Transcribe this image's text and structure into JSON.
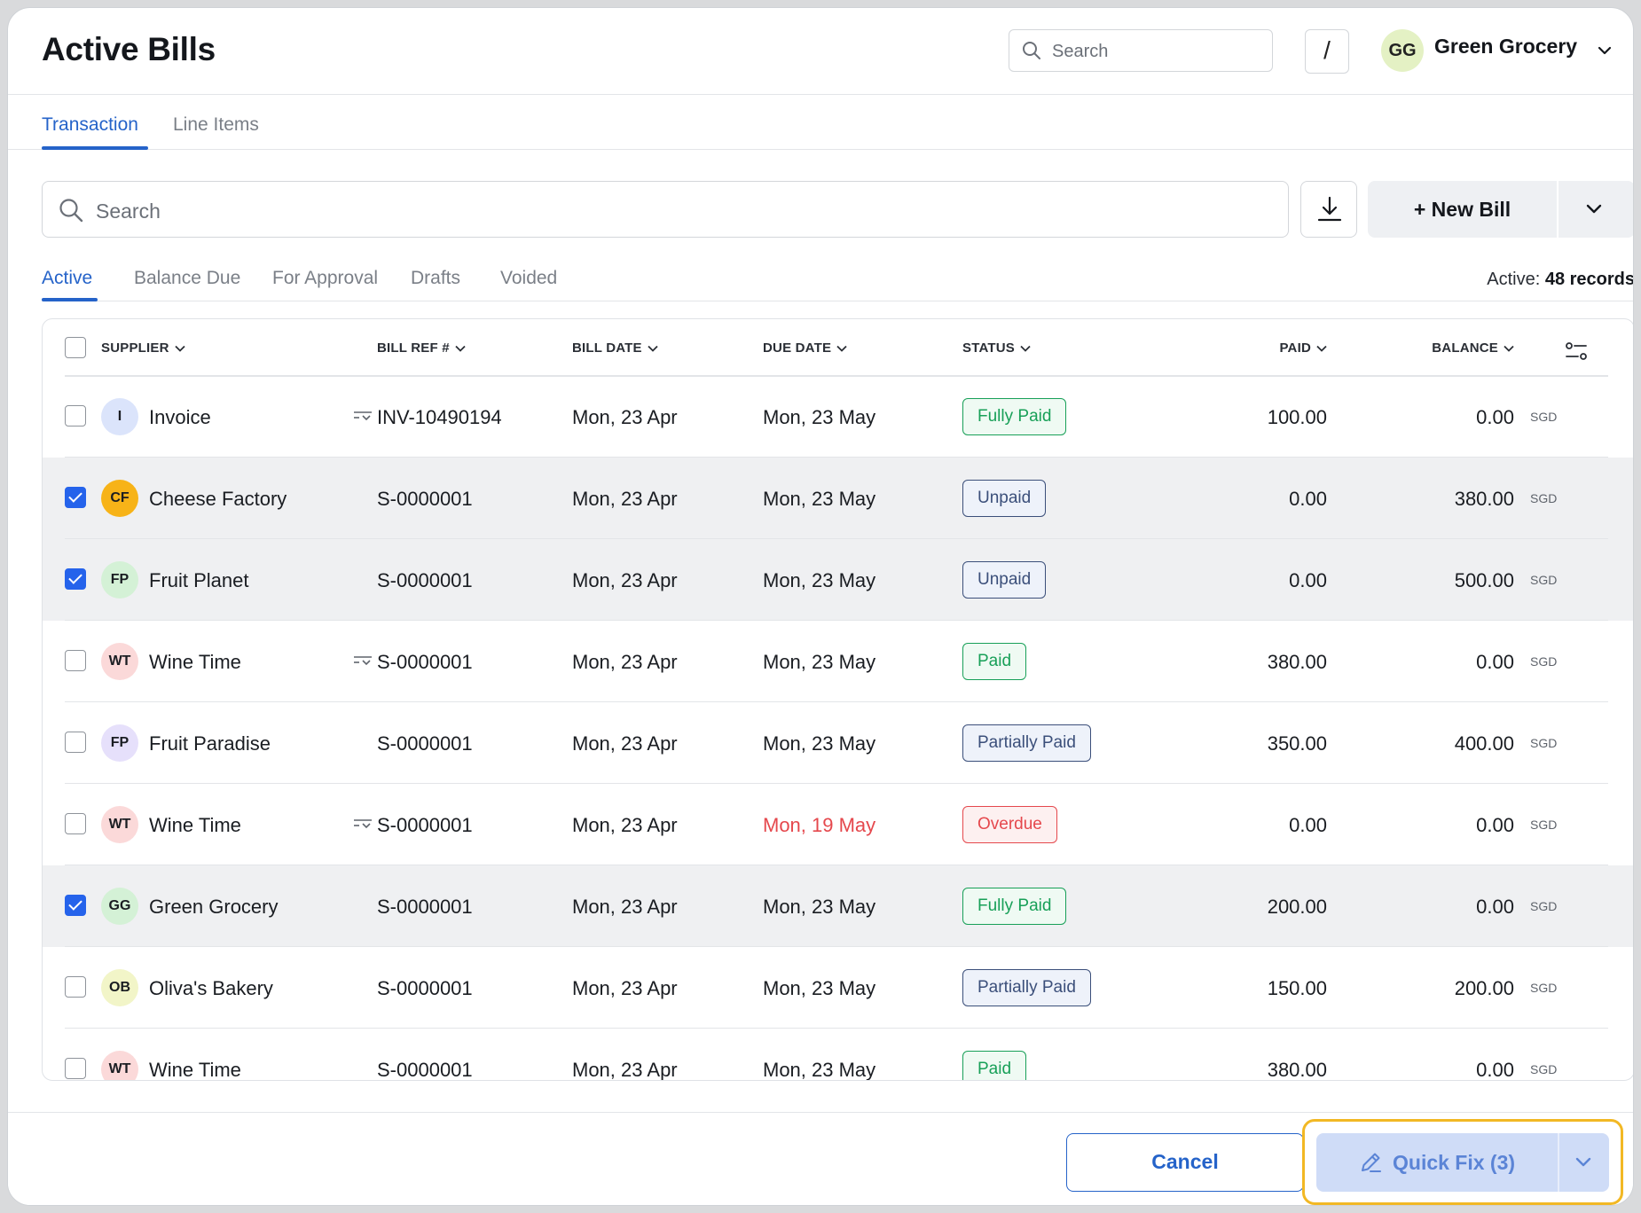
{
  "header": {
    "title": "Active Bills",
    "search_placeholder": "Search",
    "shortcut_key": "/",
    "org": {
      "initials": "GG",
      "name": "Green Grocery",
      "avatar_color": "#e4f1c4"
    }
  },
  "primary_tabs": [
    {
      "label": "Transaction",
      "active": true
    },
    {
      "label": "Line Items",
      "active": false
    }
  ],
  "toolbar": {
    "search_placeholder": "Search",
    "new_bill_label": "+ New Bill"
  },
  "secondary_tabs": [
    {
      "label": "Active",
      "active": true
    },
    {
      "label": "Balance Due",
      "active": false
    },
    {
      "label": "For Approval",
      "active": false
    },
    {
      "label": "Drafts",
      "active": false
    },
    {
      "label": "Voided",
      "active": false
    }
  ],
  "records": {
    "prefix": "Active:",
    "count_text": "48 records"
  },
  "table": {
    "columns": {
      "supplier": "SUPPLIER",
      "bill_ref": "BILL REF #",
      "bill_date": "BILL DATE",
      "due_date": "DUE DATE",
      "status": "STATUS",
      "paid": "PAID",
      "balance": "BALANCE"
    },
    "rows": [
      {
        "checked": false,
        "initials": "I",
        "avatar_color": "#dbe4fb",
        "supplier": "Invoice",
        "has_ref_icon": true,
        "bill_ref": "INV-10490194",
        "bill_date": "Mon, 23 Apr",
        "due_date": "Mon, 23 May",
        "overdue": false,
        "status": "Fully Paid",
        "status_color": "green",
        "paid": "100.00",
        "balance": "0.00",
        "currency": "SGD"
      },
      {
        "checked": true,
        "initials": "CF",
        "avatar_color": "#f7b318",
        "supplier": "Cheese Factory",
        "has_ref_icon": false,
        "bill_ref": "S-0000001",
        "bill_date": "Mon, 23 Apr",
        "due_date": "Mon, 23 May",
        "overdue": false,
        "status": "Unpaid",
        "status_color": "blue",
        "paid": "0.00",
        "balance": "380.00",
        "currency": "SGD"
      },
      {
        "checked": true,
        "initials": "FP",
        "avatar_color": "#d4f1d6",
        "supplier": "Fruit Planet",
        "has_ref_icon": false,
        "bill_ref": "S-0000001",
        "bill_date": "Mon, 23 Apr",
        "due_date": "Mon, 23 May",
        "overdue": false,
        "status": "Unpaid",
        "status_color": "blue",
        "paid": "0.00",
        "balance": "500.00",
        "currency": "SGD"
      },
      {
        "checked": false,
        "initials": "WT",
        "avatar_color": "#fbd9d9",
        "supplier": "Wine Time",
        "has_ref_icon": true,
        "bill_ref": "S-0000001",
        "bill_date": "Mon, 23 Apr",
        "due_date": "Mon, 23 May",
        "overdue": false,
        "status": "Paid",
        "status_color": "green",
        "paid": "380.00",
        "balance": "0.00",
        "currency": "SGD"
      },
      {
        "checked": false,
        "initials": "FP",
        "avatar_color": "#e6e0fb",
        "supplier": "Fruit Paradise",
        "has_ref_icon": false,
        "bill_ref": "S-0000001",
        "bill_date": "Mon, 23 Apr",
        "due_date": "Mon, 23 May",
        "overdue": false,
        "status": "Partially Paid",
        "status_color": "blue",
        "paid": "350.00",
        "balance": "400.00",
        "currency": "SGD"
      },
      {
        "checked": false,
        "initials": "WT",
        "avatar_color": "#fbd9d9",
        "supplier": "Wine Time",
        "has_ref_icon": true,
        "bill_ref": "S-0000001",
        "bill_date": "Mon, 23 Apr",
        "due_date": "Mon, 19 May",
        "overdue": true,
        "status": "Overdue",
        "status_color": "red",
        "paid": "0.00",
        "balance": "0.00",
        "currency": "SGD"
      },
      {
        "checked": true,
        "initials": "GG",
        "avatar_color": "#d4f1d6",
        "supplier": "Green Grocery",
        "has_ref_icon": false,
        "bill_ref": "S-0000001",
        "bill_date": "Mon, 23 Apr",
        "due_date": "Mon, 23 May",
        "overdue": false,
        "status": "Fully Paid",
        "status_color": "green",
        "paid": "200.00",
        "balance": "0.00",
        "currency": "SGD"
      },
      {
        "checked": false,
        "initials": "OB",
        "avatar_color": "#f2f5c8",
        "supplier": "Oliva's Bakery",
        "has_ref_icon": false,
        "bill_ref": "S-0000001",
        "bill_date": "Mon, 23 Apr",
        "due_date": "Mon, 23 May",
        "overdue": false,
        "status": "Partially Paid",
        "status_color": "blue",
        "paid": "150.00",
        "balance": "200.00",
        "currency": "SGD"
      },
      {
        "checked": false,
        "initials": "WT",
        "avatar_color": "#fbd9d9",
        "supplier": "Wine Time",
        "has_ref_icon": false,
        "bill_ref": "S-0000001",
        "bill_date": "Mon, 23 Apr",
        "due_date": "Mon, 23 May",
        "overdue": false,
        "status": "Paid",
        "status_color": "green",
        "paid": "380.00",
        "balance": "0.00",
        "currency": "SGD"
      }
    ]
  },
  "footer": {
    "cancel_label": "Cancel",
    "quick_fix_label": "Quick Fix (3)",
    "highlight_color": "#f2b824"
  },
  "colors": {
    "accent": "#2563c9",
    "overdue": "#e5484d",
    "success": "#18a058"
  }
}
